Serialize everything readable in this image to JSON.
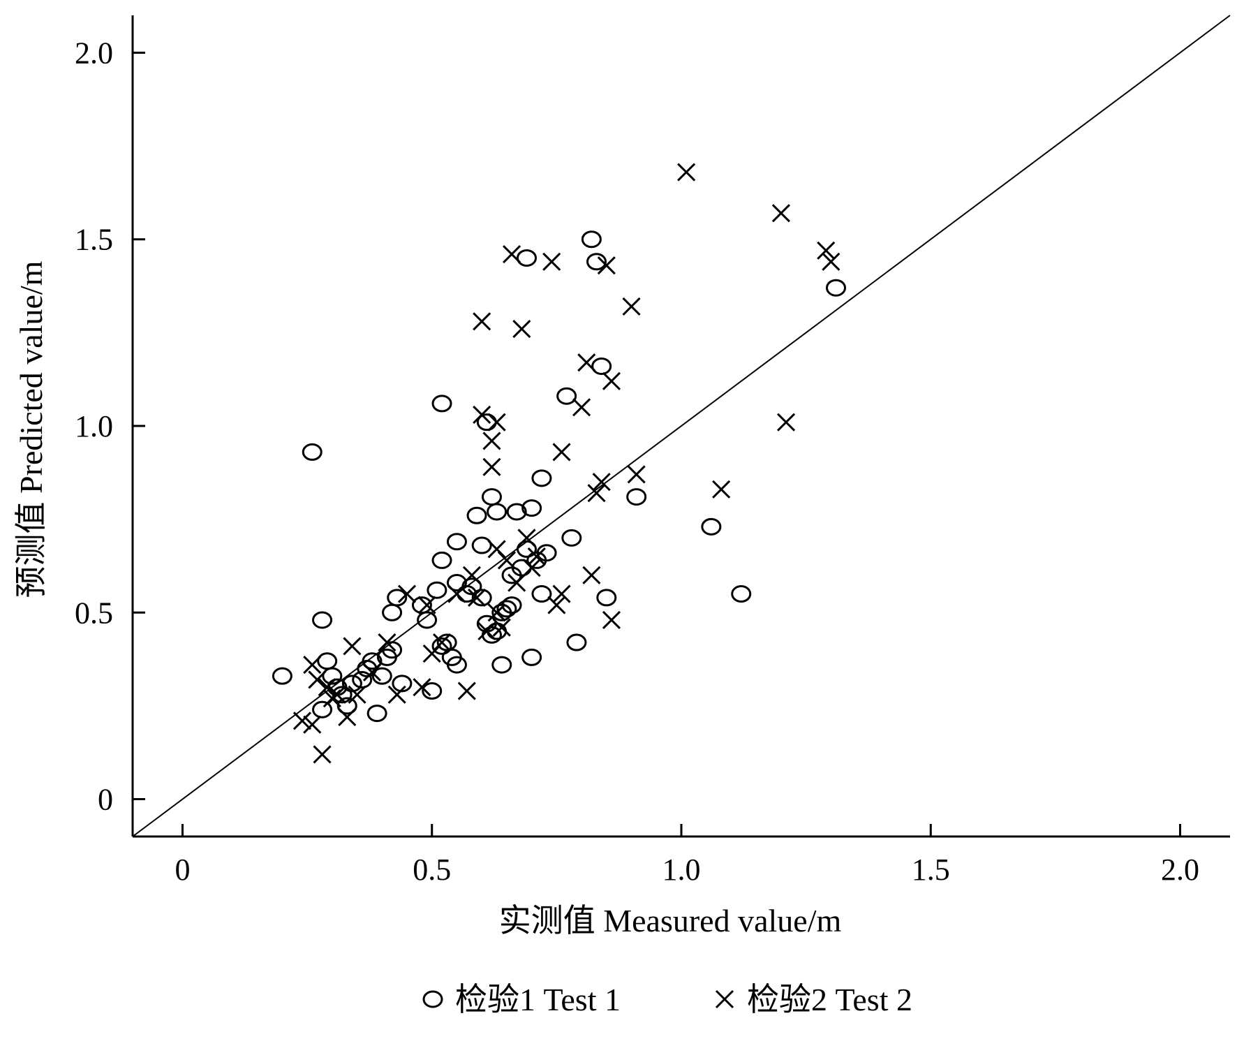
{
  "chart_data": {
    "type": "scatter",
    "xlabel": "实测值  Measured value/m",
    "ylabel": "预测值  Predicted value/m",
    "xlim": [
      -0.1,
      2.1
    ],
    "ylim": [
      -0.1,
      2.1
    ],
    "x_ticks": [
      "0",
      "0.5",
      "1.0",
      "1.5",
      "2.0"
    ],
    "y_ticks": [
      "0",
      "0.5",
      "1.0",
      "1.5",
      "2.0"
    ],
    "reference_line": "y = x",
    "legend_position": "bottom-center",
    "series": [
      {
        "name": "检验1  Test 1",
        "marker": "circle",
        "points": [
          [
            0.2,
            0.33
          ],
          [
            0.26,
            0.93
          ],
          [
            0.28,
            0.48
          ],
          [
            0.29,
            0.37
          ],
          [
            0.3,
            0.33
          ],
          [
            0.31,
            0.3
          ],
          [
            0.32,
            0.28
          ],
          [
            0.33,
            0.25
          ],
          [
            0.34,
            0.31
          ],
          [
            0.28,
            0.24
          ],
          [
            0.36,
            0.32
          ],
          [
            0.37,
            0.35
          ],
          [
            0.38,
            0.37
          ],
          [
            0.39,
            0.23
          ],
          [
            0.4,
            0.33
          ],
          [
            0.41,
            0.38
          ],
          [
            0.42,
            0.5
          ],
          [
            0.43,
            0.54
          ],
          [
            0.42,
            0.4
          ],
          [
            0.44,
            0.31
          ],
          [
            0.48,
            0.52
          ],
          [
            0.49,
            0.48
          ],
          [
            0.5,
            0.29
          ],
          [
            0.51,
            0.56
          ],
          [
            0.52,
            0.41
          ],
          [
            0.52,
            0.64
          ],
          [
            0.53,
            0.42
          ],
          [
            0.54,
            0.38
          ],
          [
            0.55,
            0.36
          ],
          [
            0.55,
            0.58
          ],
          [
            0.55,
            0.69
          ],
          [
            0.52,
            1.06
          ],
          [
            0.57,
            0.55
          ],
          [
            0.58,
            0.57
          ],
          [
            0.59,
            0.76
          ],
          [
            0.6,
            0.68
          ],
          [
            0.6,
            0.54
          ],
          [
            0.61,
            0.47
          ],
          [
            0.61,
            1.01
          ],
          [
            0.62,
            0.44
          ],
          [
            0.62,
            0.81
          ],
          [
            0.63,
            0.77
          ],
          [
            0.63,
            0.45
          ],
          [
            0.64,
            0.36
          ],
          [
            0.64,
            0.5
          ],
          [
            0.65,
            0.51
          ],
          [
            0.66,
            0.52
          ],
          [
            0.66,
            0.6
          ],
          [
            0.67,
            0.77
          ],
          [
            0.68,
            0.62
          ],
          [
            0.69,
            0.67
          ],
          [
            0.69,
            1.45
          ],
          [
            0.7,
            0.38
          ],
          [
            0.7,
            0.78
          ],
          [
            0.71,
            0.64
          ],
          [
            0.72,
            0.86
          ],
          [
            0.72,
            0.55
          ],
          [
            0.73,
            0.66
          ],
          [
            0.77,
            1.08
          ],
          [
            0.78,
            0.7
          ],
          [
            0.79,
            0.42
          ],
          [
            0.82,
            1.5
          ],
          [
            0.83,
            1.44
          ],
          [
            0.84,
            1.16
          ],
          [
            0.85,
            0.54
          ],
          [
            0.91,
            0.81
          ],
          [
            1.06,
            0.73
          ],
          [
            1.12,
            0.55
          ],
          [
            1.31,
            1.37
          ]
        ]
      },
      {
        "name": "检验2  Test 2",
        "marker": "cross",
        "points": [
          [
            0.24,
            0.21
          ],
          [
            0.26,
            0.36
          ],
          [
            0.26,
            0.2
          ],
          [
            0.27,
            0.32
          ],
          [
            0.28,
            0.12
          ],
          [
            0.29,
            0.3
          ],
          [
            0.3,
            0.27
          ],
          [
            0.31,
            0.28
          ],
          [
            0.33,
            0.22
          ],
          [
            0.34,
            0.41
          ],
          [
            0.35,
            0.28
          ],
          [
            0.38,
            0.34
          ],
          [
            0.41,
            0.42
          ],
          [
            0.43,
            0.28
          ],
          [
            0.45,
            0.55
          ],
          [
            0.48,
            0.3
          ],
          [
            0.49,
            0.52
          ],
          [
            0.5,
            0.39
          ],
          [
            0.52,
            0.42
          ],
          [
            0.55,
            0.55
          ],
          [
            0.57,
            0.29
          ],
          [
            0.58,
            0.6
          ],
          [
            0.59,
            0.54
          ],
          [
            0.6,
            1.28
          ],
          [
            0.6,
            1.03
          ],
          [
            0.61,
            0.45
          ],
          [
            0.62,
            0.96
          ],
          [
            0.62,
            0.89
          ],
          [
            0.63,
            1.01
          ],
          [
            0.63,
            0.67
          ],
          [
            0.63,
            0.5
          ],
          [
            0.64,
            0.46
          ],
          [
            0.65,
            0.64
          ],
          [
            0.66,
            1.46
          ],
          [
            0.67,
            0.58
          ],
          [
            0.68,
            1.26
          ],
          [
            0.69,
            0.7
          ],
          [
            0.7,
            0.62
          ],
          [
            0.71,
            0.65
          ],
          [
            0.74,
            1.44
          ],
          [
            0.75,
            0.52
          ],
          [
            0.76,
            0.55
          ],
          [
            0.76,
            0.93
          ],
          [
            0.8,
            1.05
          ],
          [
            0.81,
            1.17
          ],
          [
            0.82,
            0.6
          ],
          [
            0.83,
            0.82
          ],
          [
            0.84,
            0.85
          ],
          [
            0.85,
            1.43
          ],
          [
            0.86,
            0.48
          ],
          [
            0.86,
            1.12
          ],
          [
            0.9,
            1.32
          ],
          [
            0.91,
            0.87
          ],
          [
            1.01,
            1.68
          ],
          [
            1.08,
            0.83
          ],
          [
            1.2,
            1.57
          ],
          [
            1.21,
            1.01
          ],
          [
            1.29,
            1.47
          ],
          [
            1.3,
            1.44
          ]
        ]
      }
    ]
  }
}
